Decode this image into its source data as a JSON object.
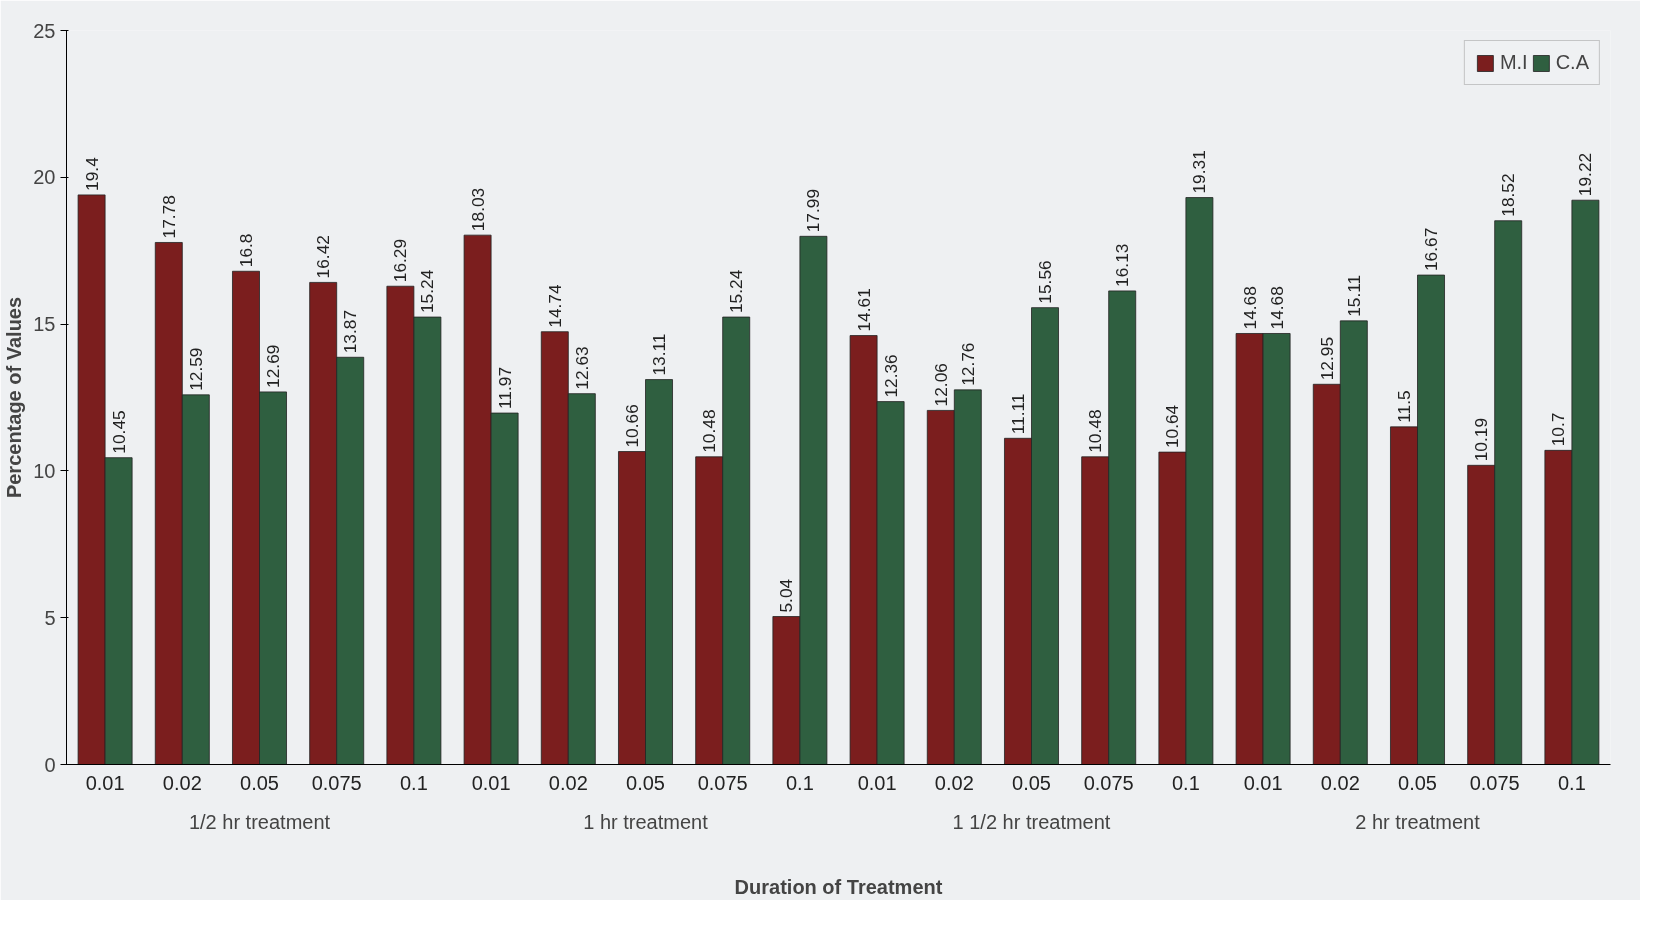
{
  "chart_data": {
    "type": "bar",
    "xlabel": "Duration of Treatment",
    "ylabel": "Percentage of Values",
    "categories": [
      "0.01",
      "0.02",
      "0.05",
      "0.075",
      "0.1",
      "0.01",
      "0.02",
      "0.05",
      "0.075",
      "0.1",
      "0.01",
      "0.02",
      "0.05",
      "0.075",
      "0.1",
      "0.01",
      "0.02",
      "0.05",
      "0.075",
      "0.1"
    ],
    "annotations": [
      "1/2 hr treatment",
      "1 hr treatment",
      "1 1/2 hr treatment",
      "2 hr treatment"
    ],
    "series": [
      {
        "name": "M.I",
        "color": "#7b1e1e",
        "values": [
          19.4,
          17.78,
          16.8,
          16.42,
          16.29,
          18.03,
          14.74,
          10.66,
          10.48,
          5.04,
          14.61,
          12.06,
          11.11,
          10.48,
          10.64,
          14.68,
          12.95,
          11.5,
          10.19,
          10.7
        ]
      },
      {
        "name": "C.A",
        "color": "#2f5f40",
        "values": [
          10.45,
          12.59,
          12.69,
          13.87,
          15.24,
          11.97,
          12.63,
          13.11,
          15.24,
          17.99,
          12.36,
          12.76,
          15.56,
          16.13,
          19.31,
          14.68,
          15.11,
          16.67,
          18.52,
          19.22
        ]
      }
    ],
    "ylim": [
      0,
      25
    ],
    "yticks": [
      0,
      5,
      10,
      15,
      20,
      25
    ],
    "grid": false,
    "legend": "top right",
    "data_labels": true
  }
}
